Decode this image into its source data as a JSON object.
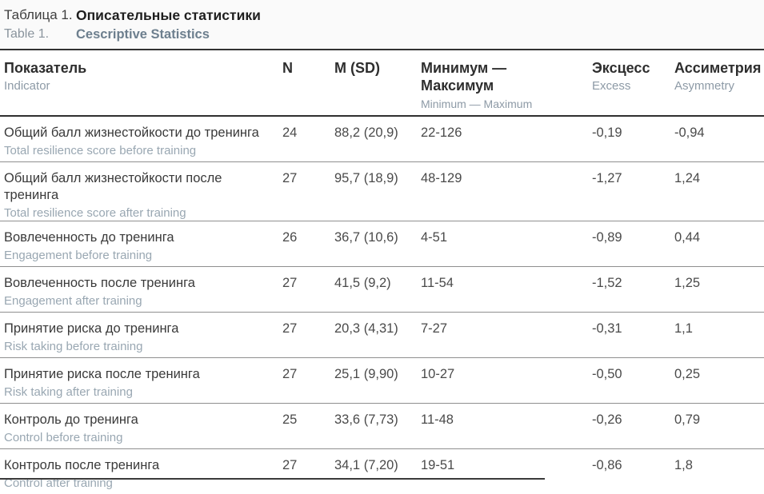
{
  "caption": {
    "label_ru": "Таблица 1.",
    "title_ru": "Описательные статистики",
    "label_en": "Table 1.",
    "title_en": "Cescriptive Statistics"
  },
  "table": {
    "columns": [
      {
        "ru": "Показатель",
        "en": "Indicator"
      },
      {
        "ru": "N",
        "en": ""
      },
      {
        "ru": "M (SD)",
        "en": ""
      },
      {
        "ru": "Минимум — Максимум",
        "en": "Minimum — Maximum"
      },
      {
        "ru": "Эксцесс",
        "en": "Excess"
      },
      {
        "ru": "Ассиметрия",
        "en": "Asymmetry"
      }
    ],
    "rows": [
      {
        "indicator_ru": "Общий балл жизнестойкости до тренинга",
        "indicator_en": "Total resilience score before training",
        "n": "24",
        "m_sd": "88,2 (20,9)",
        "min_max": "22-126",
        "excess": "-0,19",
        "asymmetry": "-0,94"
      },
      {
        "indicator_ru": "Общий балл жизнестойкости после тренинга",
        "indicator_en": "Total resilience score after training",
        "n": "27",
        "m_sd": "95,7 (18,9)",
        "min_max": "48-129",
        "excess": "-1,27",
        "asymmetry": "1,24"
      },
      {
        "indicator_ru": "Вовлеченность до тренинга",
        "indicator_en": "Engagement before training",
        "n": "26",
        "m_sd": "36,7 (10,6)",
        "min_max": "4-51",
        "excess": "-0,89",
        "asymmetry": "0,44"
      },
      {
        "indicator_ru": "Вовлеченность после тренинга",
        "indicator_en": "Engagement after training",
        "n": "27",
        "m_sd": "41,5 (9,2)",
        "min_max": "11-54",
        "excess": "-1,52",
        "asymmetry": "1,25"
      },
      {
        "indicator_ru": "Принятие риска до тренинга",
        "indicator_en": "Risk taking before training",
        "n": "27",
        "m_sd": "20,3 (4,31)",
        "min_max": "7-27",
        "excess": "-0,31",
        "asymmetry": "1,1"
      },
      {
        "indicator_ru": "Принятие риска после тренинга",
        "indicator_en": "Risk taking after training",
        "n": "27",
        "m_sd": "25,1 (9,90)",
        "min_max": "10-27",
        "excess": "-0,50",
        "asymmetry": "0,25"
      },
      {
        "indicator_ru": "Контроль до тренинга",
        "indicator_en": "Control before training",
        "n": "25",
        "m_sd": "33,6 (7,73)",
        "min_max": "11-48",
        "excess": "-0,26",
        "asymmetry": "0,79"
      },
      {
        "indicator_ru": "Контроль после тренинга",
        "indicator_en": "Control after training",
        "n": "27",
        "m_sd": "34,1 (7,20)",
        "min_max": "19-51",
        "excess": "-0,86",
        "asymmetry": "1,8"
      }
    ]
  }
}
